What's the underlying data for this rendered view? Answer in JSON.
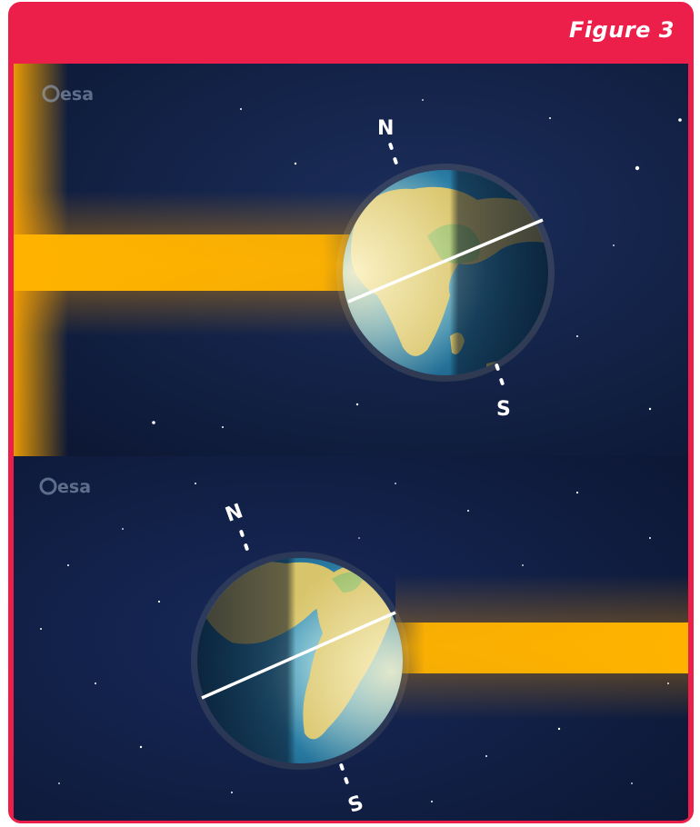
{
  "header": {
    "title": "Figure 3"
  },
  "panels": [
    {
      "logo": "esa",
      "north_label": "N",
      "south_label": "S",
      "sun_side": "left",
      "icon": "earth-icon"
    },
    {
      "logo": "esa",
      "north_label": "N",
      "south_label": "S",
      "sun_side": "right",
      "icon": "earth-icon"
    }
  ],
  "colors": {
    "accent": "#ec1e4a",
    "space": "#0f1d3d",
    "sunlight": "#ffb300",
    "ocean": "#2d7fa6",
    "land": "#c9b55a"
  }
}
